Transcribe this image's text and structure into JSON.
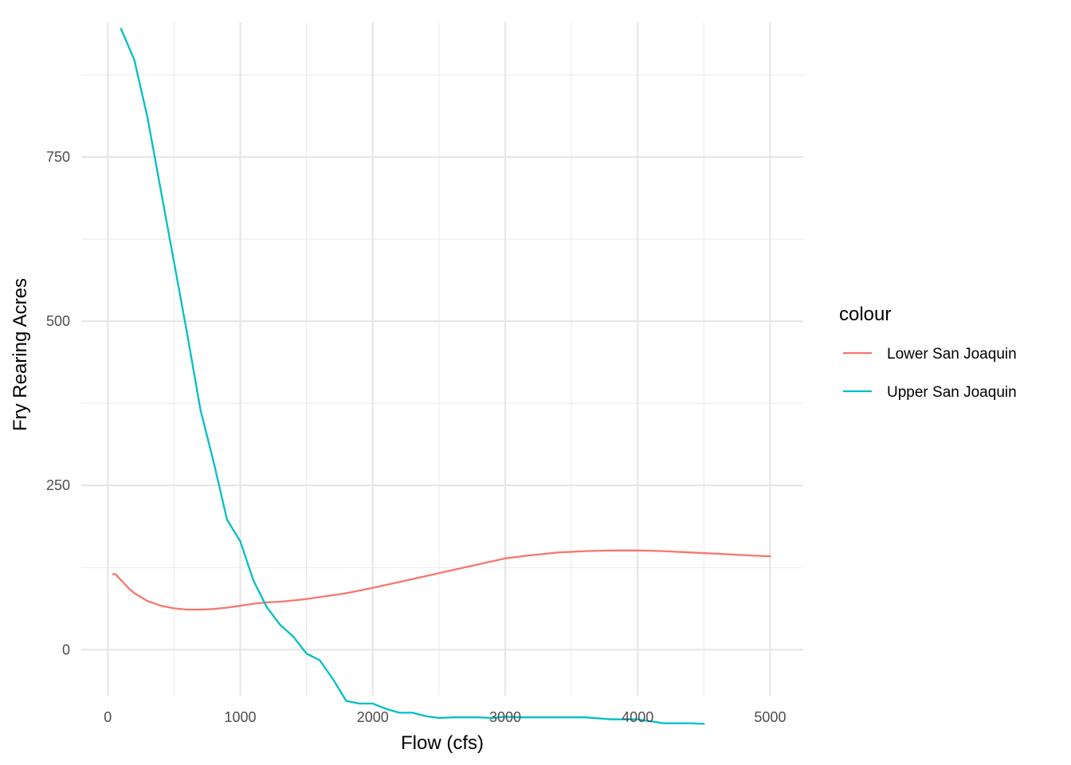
{
  "chart_data": {
    "type": "line",
    "title": "",
    "xlabel": "Flow (cfs)",
    "ylabel": "Fry Rearing Acres",
    "xlim": [
      -200,
      5250
    ],
    "ylim": [
      -70,
      955
    ],
    "x_ticks": [
      0,
      1000,
      2000,
      3000,
      4000,
      5000
    ],
    "x_tick_labels": [
      "0",
      "1000",
      "2000",
      "3000",
      "4000",
      "5000"
    ],
    "x_minor_ticks": [
      500,
      1500,
      2500,
      3500,
      4500
    ],
    "y_ticks": [
      0,
      250,
      500,
      750
    ],
    "y_tick_labels": [
      "0",
      "250",
      "500",
      "750"
    ],
    "y_minor_ticks": [
      125,
      375,
      625,
      875
    ],
    "grid": true,
    "legend": {
      "title": "colour",
      "position": "right"
    },
    "series": [
      {
        "name": "Lower San Joaquin",
        "color": "#F8766D",
        "x": [
          40,
          60,
          80,
          100,
          150,
          200,
          300,
          400,
          500,
          600,
          700,
          800,
          900,
          1000,
          1100,
          1200,
          1300,
          1400,
          1500,
          1600,
          1700,
          1800,
          1900,
          2000,
          2200,
          2400,
          2600,
          2800,
          3000,
          3200,
          3400,
          3600,
          3800,
          4000,
          4200,
          4400,
          4600,
          4800,
          5000
        ],
        "y": [
          115,
          115,
          110,
          106,
          95,
          86,
          74,
          67,
          63,
          61,
          61,
          62,
          64,
          67,
          70,
          72,
          73,
          75,
          77,
          80,
          83,
          86,
          90,
          94,
          103,
          112,
          121,
          130,
          139,
          144,
          148,
          150,
          151,
          151,
          150,
          148,
          146,
          144,
          142
        ]
      },
      {
        "name": "Upper San Joaquin",
        "color": "#00BFC4",
        "x": [
          100,
          200,
          300,
          400,
          500,
          600,
          700,
          800,
          900,
          1000,
          1100,
          1200,
          1300,
          1400,
          1500,
          1600,
          1700,
          1800,
          1900,
          2000,
          2100,
          2200,
          2300,
          2400,
          2500,
          2600,
          2700,
          2800,
          2900,
          3000,
          3100,
          3200,
          3400,
          3600,
          3800,
          4000,
          4100,
          4200,
          4300,
          4400,
          4500
        ],
        "y": [
          945,
          898,
          810,
          700,
          590,
          480,
          365,
          285,
          198,
          165,
          105,
          65,
          38,
          20,
          -6,
          -16,
          -45,
          -78,
          -82,
          -82,
          -90,
          -96,
          -96,
          -101,
          -104,
          -103,
          -103,
          -103,
          -104,
          -102,
          -103,
          -103,
          -103,
          -103,
          -106,
          -106,
          -109,
          -112,
          -112,
          -112,
          -113
        ]
      }
    ]
  }
}
